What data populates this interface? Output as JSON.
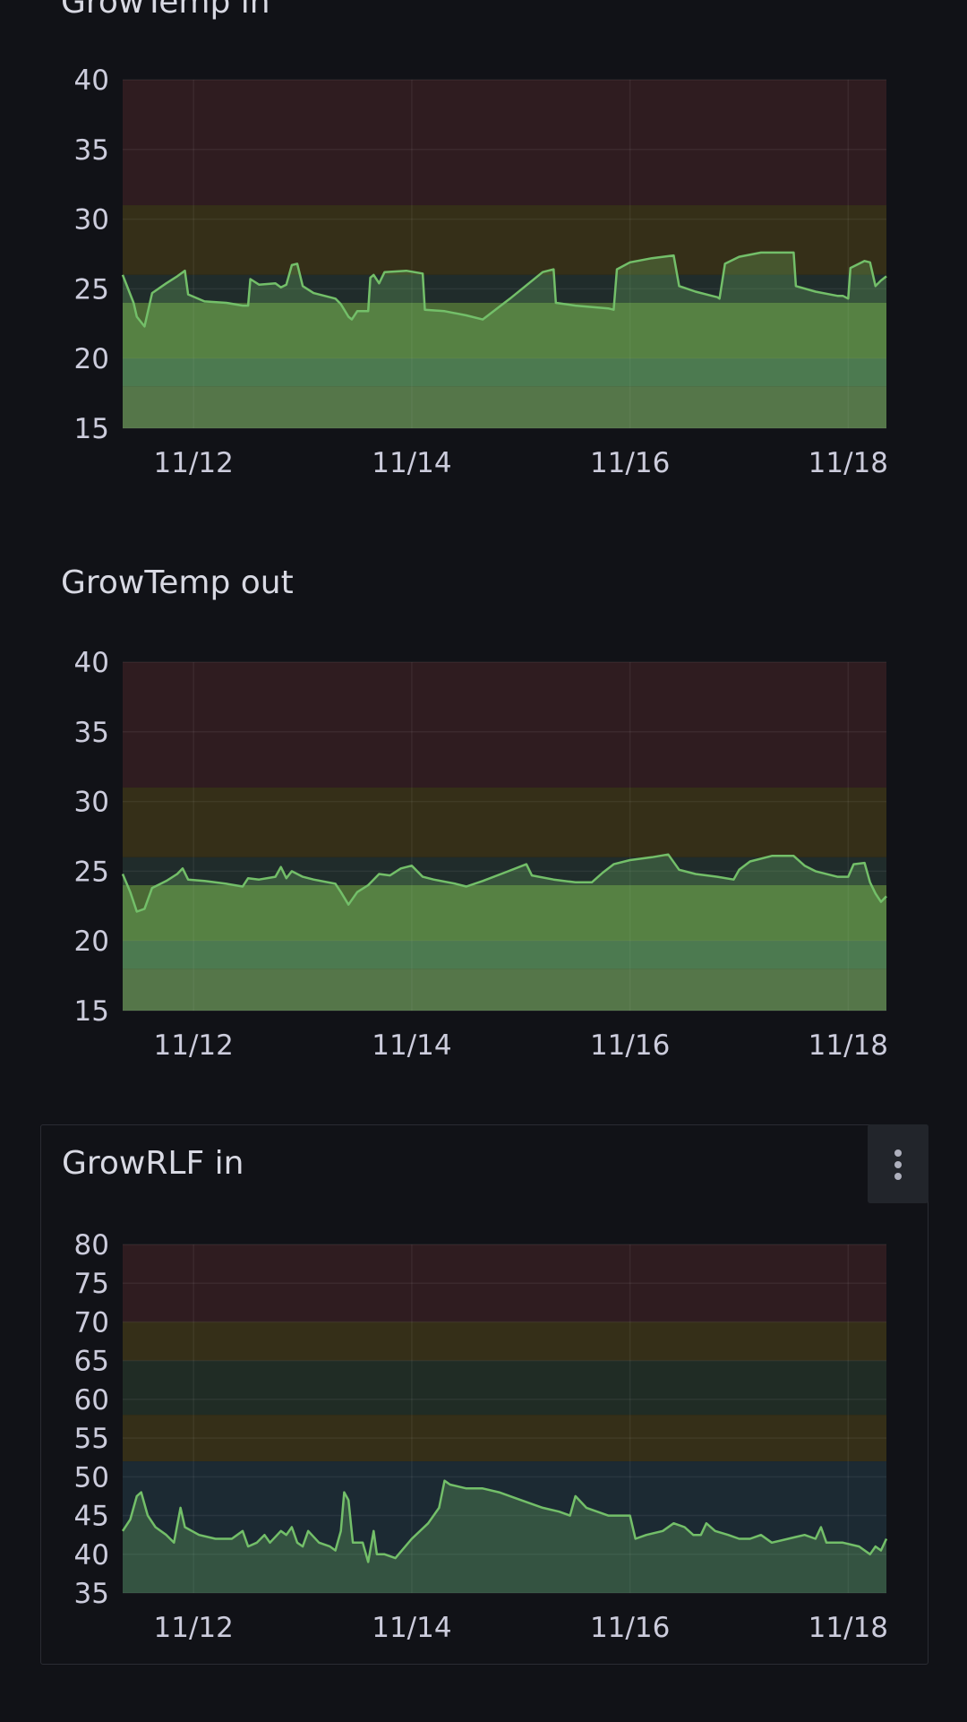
{
  "panels": [
    {
      "title": "GrowTemp in"
    },
    {
      "title": "GrowTemp out"
    },
    {
      "title": "GrowRLF in"
    }
  ],
  "chart_data": [
    {
      "type": "area",
      "title": "GrowTemp in",
      "ylim": [
        15,
        40
      ],
      "yticks": [
        15,
        20,
        25,
        30,
        35,
        40
      ],
      "xlim": [
        11.35,
        18.35
      ],
      "xticks": [
        {
          "x": 12,
          "label": "11/12"
        },
        {
          "x": 14,
          "label": "11/14"
        },
        {
          "x": 16,
          "label": "11/16"
        },
        {
          "x": 18,
          "label": "11/18"
        }
      ],
      "grid": true,
      "threshold_bands": [
        {
          "from": 31,
          "to": 40,
          "color": "#2f1c20"
        },
        {
          "from": 26,
          "to": 31,
          "color": "#352f18"
        },
        {
          "from": 24,
          "to": 26,
          "color": "#202c2b"
        },
        {
          "from": 20,
          "to": 24,
          "color": "#4b6a35"
        },
        {
          "from": 18,
          "to": 20,
          "color": "#3d6047"
        },
        {
          "from": 15,
          "to": 18,
          "color": "#4a5a3e"
        }
      ],
      "series": [
        {
          "color": "#73bf69",
          "points": [
            [
              11.35,
              26
            ],
            [
              11.45,
              24
            ],
            [
              11.48,
              23
            ],
            [
              11.55,
              22.3
            ],
            [
              11.62,
              24.7
            ],
            [
              11.75,
              25.4
            ],
            [
              11.85,
              25.9
            ],
            [
              11.92,
              26.3
            ],
            [
              11.95,
              24.6
            ],
            [
              12.1,
              24.1
            ],
            [
              12.3,
              24
            ],
            [
              12.45,
              23.8
            ],
            [
              12.5,
              23.8
            ],
            [
              12.52,
              25.7
            ],
            [
              12.6,
              25.3
            ],
            [
              12.75,
              25.4
            ],
            [
              12.8,
              25.1
            ],
            [
              12.85,
              25.3
            ],
            [
              12.9,
              26.7
            ],
            [
              12.95,
              26.8
            ],
            [
              13.0,
              25.2
            ],
            [
              13.1,
              24.7
            ],
            [
              13.3,
              24.3
            ],
            [
              13.35,
              23.9
            ],
            [
              13.42,
              23
            ],
            [
              13.45,
              22.8
            ],
            [
              13.5,
              23.4
            ],
            [
              13.6,
              23.4
            ],
            [
              13.62,
              25.8
            ],
            [
              13.65,
              26
            ],
            [
              13.7,
              25.4
            ],
            [
              13.75,
              26.2
            ],
            [
              13.95,
              26.3
            ],
            [
              14.1,
              26.1
            ],
            [
              14.12,
              23.5
            ],
            [
              14.3,
              23.4
            ],
            [
              14.5,
              23.1
            ],
            [
              14.65,
              22.8
            ],
            [
              14.9,
              24.3
            ],
            [
              15.2,
              26.2
            ],
            [
              15.3,
              26.4
            ],
            [
              15.32,
              24
            ],
            [
              15.5,
              23.8
            ],
            [
              15.8,
              23.6
            ],
            [
              15.85,
              23.5
            ],
            [
              15.88,
              26.4
            ],
            [
              16.0,
              26.9
            ],
            [
              16.2,
              27.2
            ],
            [
              16.4,
              27.4
            ],
            [
              16.45,
              25.2
            ],
            [
              16.6,
              24.8
            ],
            [
              16.75,
              24.5
            ],
            [
              16.8,
              24.4
            ],
            [
              16.82,
              24.3
            ],
            [
              16.87,
              26.8
            ],
            [
              17.0,
              27.3
            ],
            [
              17.2,
              27.6
            ],
            [
              17.5,
              27.6
            ],
            [
              17.52,
              25.2
            ],
            [
              17.7,
              24.8
            ],
            [
              17.9,
              24.5
            ],
            [
              17.95,
              24.5
            ],
            [
              18.0,
              24.3
            ],
            [
              18.02,
              26.5
            ],
            [
              18.15,
              27
            ],
            [
              18.2,
              26.9
            ],
            [
              18.25,
              25.2
            ],
            [
              18.3,
              25.6
            ],
            [
              18.35,
              25.9
            ]
          ]
        }
      ]
    },
    {
      "type": "area",
      "title": "GrowTemp out",
      "ylim": [
        15,
        40
      ],
      "yticks": [
        15,
        20,
        25,
        30,
        35,
        40
      ],
      "xlim": [
        11.35,
        18.35
      ],
      "xticks": [
        {
          "x": 12,
          "label": "11/12"
        },
        {
          "x": 14,
          "label": "11/14"
        },
        {
          "x": 16,
          "label": "11/16"
        },
        {
          "x": 18,
          "label": "11/18"
        }
      ],
      "grid": true,
      "threshold_bands": [
        {
          "from": 31,
          "to": 40,
          "color": "#2f1c20"
        },
        {
          "from": 26,
          "to": 31,
          "color": "#352f18"
        },
        {
          "from": 24,
          "to": 26,
          "color": "#202c2b"
        },
        {
          "from": 20,
          "to": 24,
          "color": "#4b6a35"
        },
        {
          "from": 18,
          "to": 20,
          "color": "#3d6047"
        },
        {
          "from": 15,
          "to": 18,
          "color": "#4a5a3e"
        }
      ],
      "series": [
        {
          "color": "#73bf69",
          "points": [
            [
              11.35,
              24.8
            ],
            [
              11.42,
              23.5
            ],
            [
              11.48,
              22.1
            ],
            [
              11.55,
              22.3
            ],
            [
              11.62,
              23.8
            ],
            [
              11.75,
              24.3
            ],
            [
              11.85,
              24.8
            ],
            [
              11.9,
              25.2
            ],
            [
              11.95,
              24.4
            ],
            [
              12.1,
              24.3
            ],
            [
              12.3,
              24.1
            ],
            [
              12.45,
              23.9
            ],
            [
              12.5,
              24.5
            ],
            [
              12.6,
              24.4
            ],
            [
              12.75,
              24.6
            ],
            [
              12.8,
              25.3
            ],
            [
              12.85,
              24.5
            ],
            [
              12.9,
              25
            ],
            [
              13.0,
              24.6
            ],
            [
              13.1,
              24.4
            ],
            [
              13.3,
              24.1
            ],
            [
              13.35,
              23.5
            ],
            [
              13.42,
              22.6
            ],
            [
              13.5,
              23.5
            ],
            [
              13.6,
              24
            ],
            [
              13.7,
              24.8
            ],
            [
              13.8,
              24.7
            ],
            [
              13.9,
              25.2
            ],
            [
              14.0,
              25.4
            ],
            [
              14.1,
              24.6
            ],
            [
              14.2,
              24.4
            ],
            [
              14.4,
              24.1
            ],
            [
              14.5,
              23.9
            ],
            [
              14.65,
              24.3
            ],
            [
              14.85,
              24.9
            ],
            [
              15.05,
              25.5
            ],
            [
              15.1,
              24.7
            ],
            [
              15.3,
              24.4
            ],
            [
              15.5,
              24.2
            ],
            [
              15.65,
              24.2
            ],
            [
              15.75,
              24.9
            ],
            [
              15.85,
              25.5
            ],
            [
              16.0,
              25.8
            ],
            [
              16.2,
              26
            ],
            [
              16.35,
              26.2
            ],
            [
              16.45,
              25.1
            ],
            [
              16.6,
              24.8
            ],
            [
              16.8,
              24.6
            ],
            [
              16.95,
              24.4
            ],
            [
              17.0,
              25.1
            ],
            [
              17.1,
              25.7
            ],
            [
              17.3,
              26.1
            ],
            [
              17.5,
              26.1
            ],
            [
              17.6,
              25.4
            ],
            [
              17.7,
              25
            ],
            [
              17.9,
              24.6
            ],
            [
              18.0,
              24.6
            ],
            [
              18.05,
              25.5
            ],
            [
              18.15,
              25.6
            ],
            [
              18.2,
              24.2
            ],
            [
              18.25,
              23.4
            ],
            [
              18.3,
              22.8
            ],
            [
              18.35,
              23.2
            ]
          ]
        }
      ]
    },
    {
      "type": "area",
      "title": "GrowRLF in",
      "ylim": [
        35,
        80
      ],
      "yticks": [
        35,
        40,
        45,
        50,
        55,
        60,
        65,
        70,
        75,
        80
      ],
      "xlim": [
        11.35,
        18.35
      ],
      "xticks": [
        {
          "x": 12,
          "label": "11/12"
        },
        {
          "x": 14,
          "label": "11/14"
        },
        {
          "x": 16,
          "label": "11/16"
        },
        {
          "x": 18,
          "label": "11/18"
        }
      ],
      "grid": true,
      "threshold_bands": [
        {
          "from": 70,
          "to": 80,
          "color": "#2f1c20"
        },
        {
          "from": 65,
          "to": 70,
          "color": "#352f18"
        },
        {
          "from": 58,
          "to": 65,
          "color": "#202c25"
        },
        {
          "from": 52,
          "to": 58,
          "color": "#352f18"
        },
        {
          "from": 35,
          "to": 52,
          "color": "#1c2a33"
        }
      ],
      "series": [
        {
          "color": "#73bf69",
          "points": [
            [
              11.35,
              43
            ],
            [
              11.42,
              44.5
            ],
            [
              11.48,
              47.5
            ],
            [
              11.52,
              48
            ],
            [
              11.58,
              45
            ],
            [
              11.65,
              43.5
            ],
            [
              11.75,
              42.5
            ],
            [
              11.82,
              41.5
            ],
            [
              11.88,
              46
            ],
            [
              11.92,
              43.5
            ],
            [
              12.05,
              42.5
            ],
            [
              12.2,
              42
            ],
            [
              12.35,
              42
            ],
            [
              12.45,
              43
            ],
            [
              12.5,
              41
            ],
            [
              12.58,
              41.5
            ],
            [
              12.65,
              42.5
            ],
            [
              12.7,
              41.5
            ],
            [
              12.8,
              43
            ],
            [
              12.85,
              42.5
            ],
            [
              12.9,
              43.5
            ],
            [
              12.95,
              41.5
            ],
            [
              13.0,
              41
            ],
            [
              13.05,
              43
            ],
            [
              13.15,
              41.5
            ],
            [
              13.25,
              41
            ],
            [
              13.3,
              40.5
            ],
            [
              13.35,
              43
            ],
            [
              13.38,
              48
            ],
            [
              13.42,
              47
            ],
            [
              13.46,
              41.5
            ],
            [
              13.55,
              41.5
            ],
            [
              13.6,
              39
            ],
            [
              13.65,
              43
            ],
            [
              13.68,
              40
            ],
            [
              13.75,
              40
            ],
            [
              13.85,
              39.5
            ],
            [
              14.0,
              42
            ],
            [
              14.15,
              44
            ],
            [
              14.25,
              46
            ],
            [
              14.3,
              49.5
            ],
            [
              14.35,
              49
            ],
            [
              14.5,
              48.5
            ],
            [
              14.65,
              48.5
            ],
            [
              14.8,
              48
            ],
            [
              15.0,
              47
            ],
            [
              15.2,
              46
            ],
            [
              15.35,
              45.5
            ],
            [
              15.45,
              45
            ],
            [
              15.5,
              47.5
            ],
            [
              15.6,
              46
            ],
            [
              15.8,
              45
            ],
            [
              15.95,
              45
            ],
            [
              16.0,
              45
            ],
            [
              16.05,
              42
            ],
            [
              16.15,
              42.5
            ],
            [
              16.3,
              43
            ],
            [
              16.4,
              44
            ],
            [
              16.5,
              43.5
            ],
            [
              16.58,
              42.5
            ],
            [
              16.65,
              42.5
            ],
            [
              16.7,
              44
            ],
            [
              16.78,
              43
            ],
            [
              16.9,
              42.5
            ],
            [
              17.0,
              42
            ],
            [
              17.1,
              42
            ],
            [
              17.2,
              42.5
            ],
            [
              17.3,
              41.5
            ],
            [
              17.45,
              42
            ],
            [
              17.6,
              42.5
            ],
            [
              17.7,
              42
            ],
            [
              17.75,
              43.5
            ],
            [
              17.8,
              41.5
            ],
            [
              17.95,
              41.5
            ],
            [
              18.1,
              41
            ],
            [
              18.2,
              40
            ],
            [
              18.25,
              41
            ],
            [
              18.3,
              40.5
            ],
            [
              18.35,
              42
            ]
          ]
        }
      ]
    }
  ]
}
